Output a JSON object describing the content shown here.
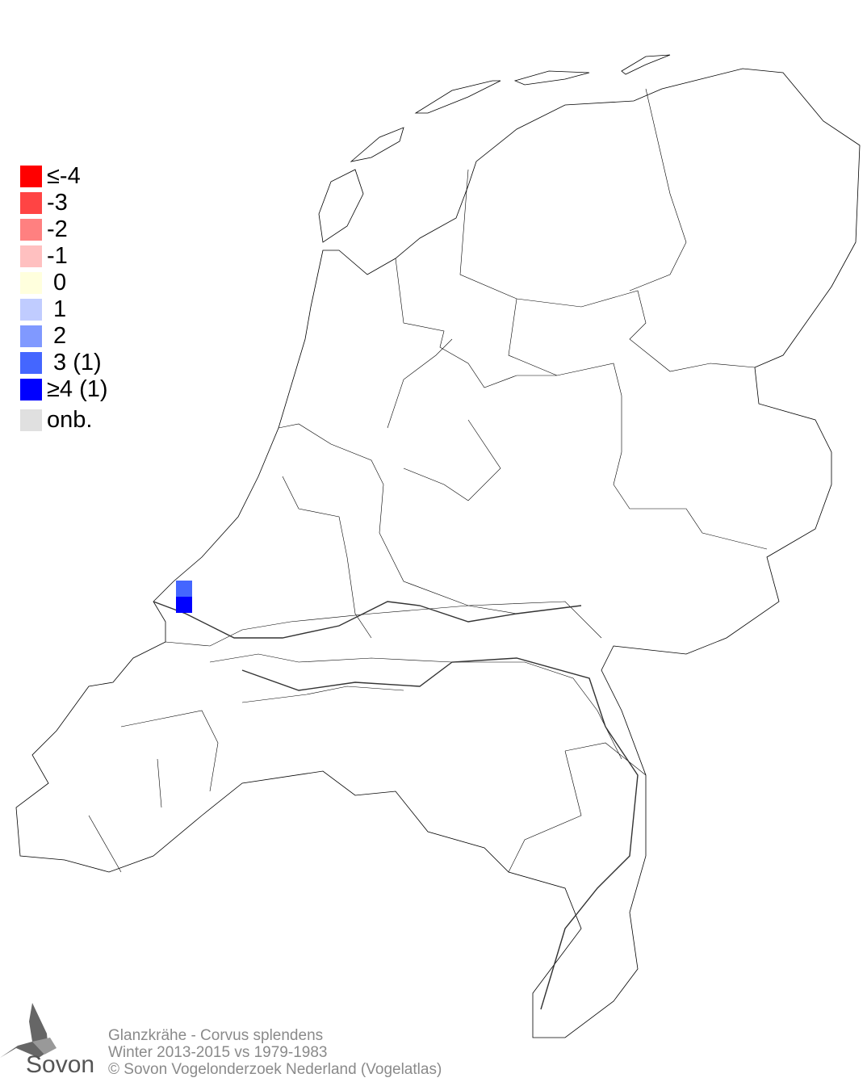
{
  "legend": {
    "items": [
      {
        "label": "≤-4",
        "color": "#ff0000"
      },
      {
        "label": "-3",
        "color": "#ff4444"
      },
      {
        "label": "-2",
        "color": "#ff8080"
      },
      {
        "label": "-1",
        "color": "#ffc0c0"
      },
      {
        "label": " 0",
        "color": "#ffffdd"
      },
      {
        "label": " 1",
        "color": "#c0ccff"
      },
      {
        "label": " 2",
        "color": "#8099ff"
      },
      {
        "label": " 3 (1)",
        "color": "#4466ff"
      },
      {
        "label": "≥4 (1)",
        "color": "#0000ff"
      },
      {
        "label": "onb.",
        "color": "#e0e0e0"
      }
    ]
  },
  "map": {
    "region": "Netherlands",
    "cells": [
      {
        "class": "3",
        "color": "#4466ff"
      },
      {
        "class": "≥4",
        "color": "#0000ff"
      }
    ]
  },
  "footer": {
    "species": "Glanzkrähe - Corvus splendens",
    "period": "Winter 2013-2015 vs 1979-1983",
    "copyright": "© Sovon Vogelonderzoek Nederland (Vogelatlas)"
  },
  "logo": {
    "text": "Sovon"
  }
}
